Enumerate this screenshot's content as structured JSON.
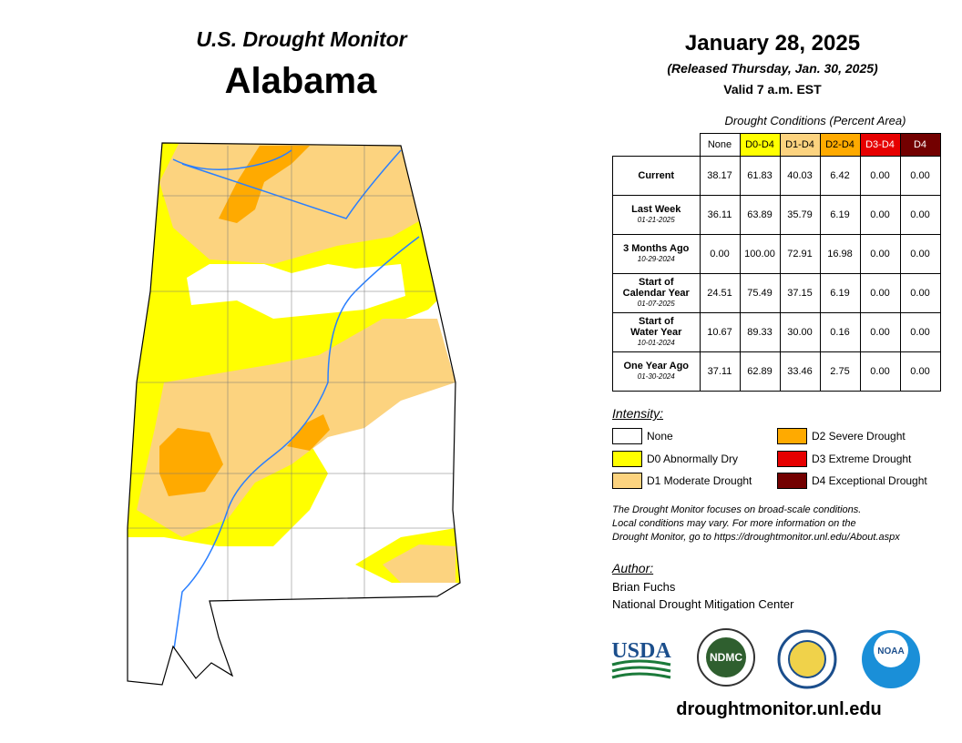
{
  "header": {
    "title": "U.S. Drought Monitor",
    "state": "Alabama",
    "date": "January 28, 2025",
    "released": "(Released Thursday, Jan. 30, 2025)",
    "valid": "Valid 7 a.m. EST"
  },
  "table": {
    "caption": "Drought Conditions (Percent Area)",
    "columns": [
      {
        "label": "None",
        "color": "#ffffff",
        "text": "#000000"
      },
      {
        "label": "D0-D4",
        "color": "#ffff00",
        "text": "#000000"
      },
      {
        "label": "D1-D4",
        "color": "#fcd37f",
        "text": "#000000"
      },
      {
        "label": "D2-D4",
        "color": "#ffaa00",
        "text": "#000000"
      },
      {
        "label": "D3-D4",
        "color": "#e60000",
        "text": "#ffffff"
      },
      {
        "label": "D4",
        "color": "#730000",
        "text": "#ffffff"
      }
    ],
    "rows": [
      {
        "label": [
          "Current"
        ],
        "values": [
          "38.17",
          "61.83",
          "40.03",
          "6.42",
          "0.00",
          "0.00"
        ]
      },
      {
        "label": [
          "Last Week"
        ],
        "date": "01-21-2025",
        "values": [
          "36.11",
          "63.89",
          "35.79",
          "6.19",
          "0.00",
          "0.00"
        ]
      },
      {
        "label": [
          "3 Months Ago"
        ],
        "date": "10-29-2024",
        "values": [
          "0.00",
          "100.00",
          "72.91",
          "16.98",
          "0.00",
          "0.00"
        ]
      },
      {
        "label": [
          "Start of",
          "Calendar Year"
        ],
        "date": "01-07-2025",
        "values": [
          "24.51",
          "75.49",
          "37.15",
          "6.19",
          "0.00",
          "0.00"
        ]
      },
      {
        "label": [
          "Start of",
          "Water Year"
        ],
        "date": "10-01-2024",
        "values": [
          "10.67",
          "89.33",
          "30.00",
          "0.16",
          "0.00",
          "0.00"
        ]
      },
      {
        "label": [
          "One Year Ago"
        ],
        "date": "01-30-2024",
        "values": [
          "37.11",
          "62.89",
          "33.46",
          "2.75",
          "0.00",
          "0.00"
        ]
      }
    ]
  },
  "legend": {
    "title": "Intensity:",
    "items": [
      {
        "label": "None",
        "color": "#ffffff"
      },
      {
        "label": "D0 Abnormally Dry",
        "color": "#ffff00"
      },
      {
        "label": "D1 Moderate Drought",
        "color": "#fcd37f"
      },
      {
        "label": "D2 Severe Drought",
        "color": "#ffaa00"
      },
      {
        "label": "D3 Extreme Drought",
        "color": "#e60000"
      },
      {
        "label": "D4 Exceptional Drought",
        "color": "#730000"
      }
    ]
  },
  "note": [
    "The Drought Monitor focuses on broad-scale conditions.",
    "Local conditions may vary. For more information on the",
    "Drought Monitor, go to https://droughtmonitor.unl.edu/About.aspx"
  ],
  "author": {
    "title": "Author:",
    "name": "Brian Fuchs",
    "org": "National Drought Mitigation Center"
  },
  "logos": {
    "usda": "USDA",
    "ndmc": "NDMC",
    "noaa": "NOAA"
  },
  "website": "droughtmonitor.unl.edu"
}
